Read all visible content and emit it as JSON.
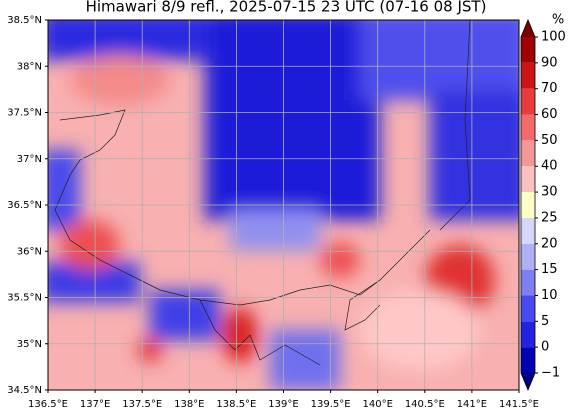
{
  "title": "Himawari 8/9 refl., 2025-07-15 23 UTC (07-16 08 JST)",
  "map": {
    "xlim": [
      136.5,
      141.5
    ],
    "ylim": [
      34.5,
      38.5
    ],
    "grid": true,
    "xticks": [
      {
        "value": 136.5,
        "label": "136.5°E"
      },
      {
        "value": 137,
        "label": "137°E"
      },
      {
        "value": 137.5,
        "label": "137.5°E"
      },
      {
        "value": 138,
        "label": "138°E"
      },
      {
        "value": 138.5,
        "label": "138.5°E"
      },
      {
        "value": 139,
        "label": "139°E"
      },
      {
        "value": 139.5,
        "label": "139.5°E"
      },
      {
        "value": 140,
        "label": "140°E"
      },
      {
        "value": 140.5,
        "label": "140.5°E"
      },
      {
        "value": 141,
        "label": "141°E"
      },
      {
        "value": 141.5,
        "label": "141.5°E"
      }
    ],
    "yticks": [
      {
        "value": 34.5,
        "label": "34.5°N"
      },
      {
        "value": 35,
        "label": "35°N"
      },
      {
        "value": 35.5,
        "label": "35.5°N"
      },
      {
        "value": 36,
        "label": "36°N"
      },
      {
        "value": 36.5,
        "label": "36.5°N"
      },
      {
        "value": 37,
        "label": "37°N"
      },
      {
        "value": 37.5,
        "label": "37.5°N"
      },
      {
        "value": 38,
        "label": "38°N"
      },
      {
        "value": 38.5,
        "label": "38.5°N"
      }
    ]
  },
  "colorbar": {
    "unit": "%",
    "levels": [
      {
        "value": -1,
        "label": "−1"
      },
      0,
      5,
      10,
      15,
      20,
      25,
      30,
      40,
      50,
      60,
      70,
      90,
      100
    ],
    "colors": [
      "#0000b4",
      "#2222e0",
      "#4a4af2",
      "#7f7ff2",
      "#b0b0f6",
      "#d6d6fc",
      "#ffffc4",
      "#fbc0c0",
      "#f79696",
      "#f26a6a",
      "#e83c3c",
      "#cc1414",
      "#a00000"
    ],
    "under_color": "#000080",
    "over_color": "#7a0000"
  }
}
